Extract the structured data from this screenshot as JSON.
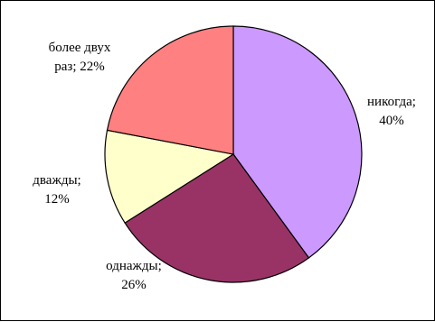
{
  "chart_data": {
    "type": "pie",
    "slices": [
      {
        "label_line1": "никогда;",
        "label_line2": "40%",
        "value": 40,
        "color": "#cc99ff"
      },
      {
        "label_line1": "однажды;",
        "label_line2": "26%",
        "value": 26,
        "color": "#993366"
      },
      {
        "label_line1": "дважды;",
        "label_line2": "12%",
        "value": 12,
        "color": "#ffffcc"
      },
      {
        "label_line1": "более двух",
        "label_line2": "раз; 22%",
        "value": 22,
        "color": "#ff8080"
      }
    ],
    "start_angle_deg": 0,
    "direction": "clockwise",
    "slice_border_color": "#000000"
  }
}
